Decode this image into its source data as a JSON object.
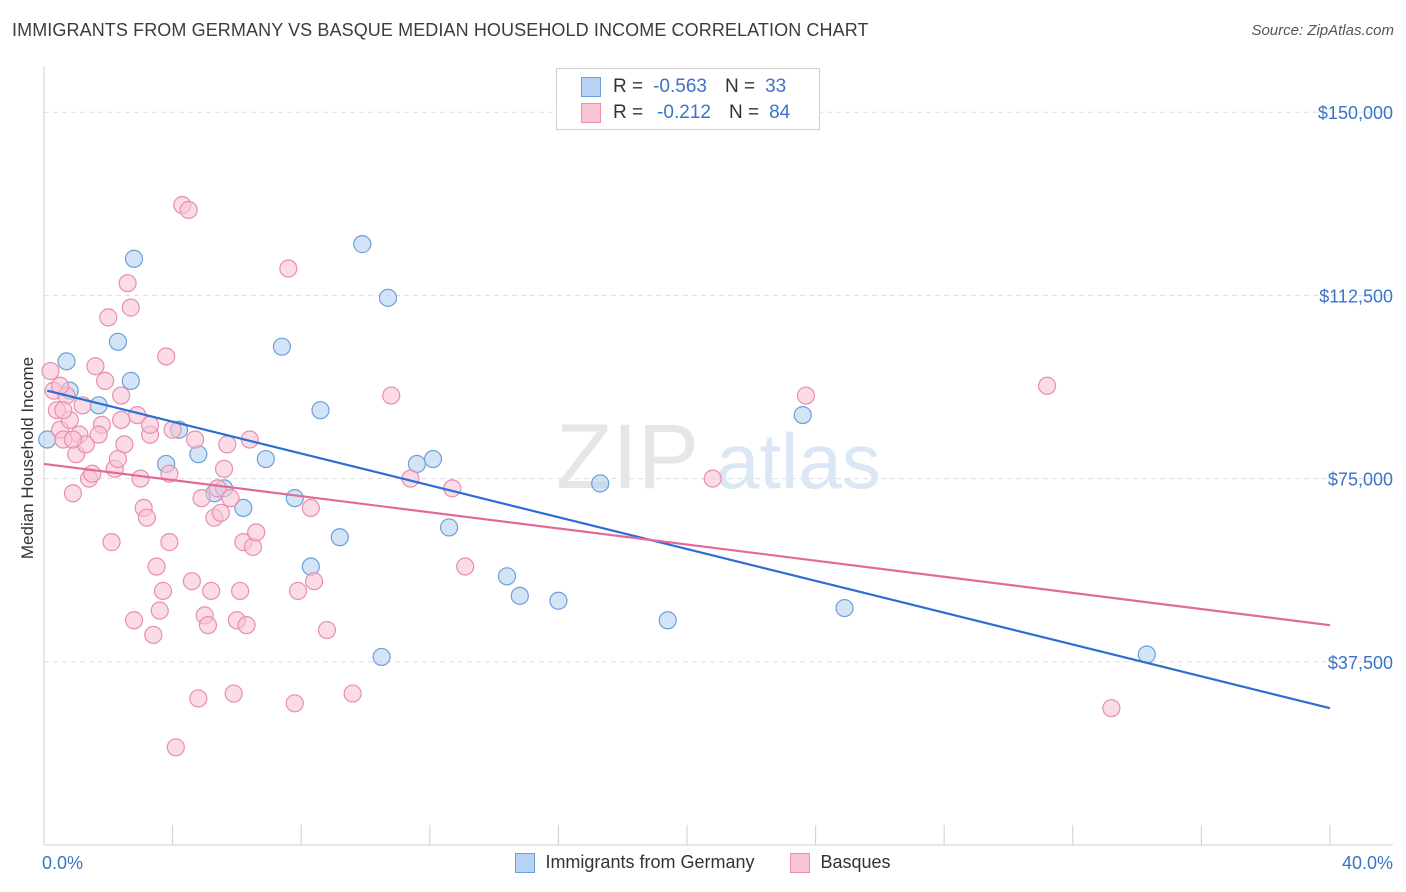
{
  "title": "IMMIGRANTS FROM GERMANY VS BASQUE MEDIAN HOUSEHOLD INCOME CORRELATION CHART",
  "source": "Source: ZipAtlas.com",
  "watermark": {
    "zip": "ZIP",
    "atlas": "atlas"
  },
  "legend": {
    "rows": [
      {
        "r_label": "R =",
        "r_value": "-0.563",
        "n_label": "N =",
        "n_value": "33"
      },
      {
        "r_label": "R =",
        "r_value": "-0.212",
        "n_label": "N =",
        "n_value": "84"
      }
    ]
  },
  "colors": {
    "blue_fill": "#b7d2f2",
    "blue_stroke": "#6d9fd8",
    "blue_line": "#2b6fd1",
    "pink_fill": "#f8c3d4",
    "pink_stroke": "#e88fad",
    "pink_line": "#e36a98",
    "axis_text": "#3a74c9",
    "grid": "#dddddd"
  },
  "chart_data": {
    "type": "scatter",
    "title": "IMMIGRANTS FROM GERMANY VS BASQUE MEDIAN HOUSEHOLD INCOME CORRELATION CHART",
    "xlabel": "",
    "ylabel": "Median Household Income",
    "xlim": [
      0,
      40
    ],
    "ylim": [
      0,
      157000
    ],
    "x_tick_labels": [
      "0.0%",
      "40.0%"
    ],
    "y_ticks": [
      37500,
      75000,
      112500,
      150000
    ],
    "y_tick_labels": [
      "$37,500",
      "$75,000",
      "$112,500",
      "$150,000"
    ],
    "legend_position": "bottom",
    "series": [
      {
        "name": "Immigrants from Germany",
        "color": "#6d9fd8",
        "points": [
          [
            0.1,
            83000
          ],
          [
            0.7,
            99000
          ],
          [
            0.8,
            93000
          ],
          [
            1.7,
            90000
          ],
          [
            2.3,
            103000
          ],
          [
            2.8,
            120000
          ],
          [
            2.7,
            95000
          ],
          [
            3.8,
            78000
          ],
          [
            4.2,
            85000
          ],
          [
            4.8,
            80000
          ],
          [
            5.3,
            72000
          ],
          [
            5.6,
            73000
          ],
          [
            6.2,
            69000
          ],
          [
            6.9,
            79000
          ],
          [
            7.4,
            102000
          ],
          [
            7.8,
            71000
          ],
          [
            8.3,
            57000
          ],
          [
            8.6,
            89000
          ],
          [
            9.2,
            63000
          ],
          [
            9.9,
            123000
          ],
          [
            10.5,
            38500
          ],
          [
            10.7,
            112000
          ],
          [
            11.6,
            78000
          ],
          [
            12.1,
            79000
          ],
          [
            12.6,
            65000
          ],
          [
            14.4,
            55000
          ],
          [
            14.8,
            51000
          ],
          [
            16.0,
            50000
          ],
          [
            17.3,
            74000
          ],
          [
            19.4,
            46000
          ],
          [
            23.6,
            88000
          ],
          [
            24.9,
            48500
          ],
          [
            34.3,
            39000
          ]
        ],
        "trend": {
          "x": [
            0.1,
            40
          ],
          "y": [
            93000,
            28000
          ]
        }
      },
      {
        "name": "Basques",
        "color": "#e88fad",
        "points": [
          [
            0.2,
            97000
          ],
          [
            0.3,
            93000
          ],
          [
            0.4,
            89000
          ],
          [
            0.5,
            85000
          ],
          [
            0.6,
            83000
          ],
          [
            0.7,
            92000
          ],
          [
            0.8,
            87000
          ],
          [
            0.9,
            72000
          ],
          [
            1.0,
            80000
          ],
          [
            1.1,
            84000
          ],
          [
            1.3,
            82000
          ],
          [
            1.4,
            75000
          ],
          [
            1.5,
            76000
          ],
          [
            1.6,
            98000
          ],
          [
            1.8,
            86000
          ],
          [
            1.9,
            95000
          ],
          [
            2.0,
            108000
          ],
          [
            2.1,
            62000
          ],
          [
            2.2,
            77000
          ],
          [
            2.4,
            87000
          ],
          [
            2.5,
            82000
          ],
          [
            2.6,
            115000
          ],
          [
            2.7,
            110000
          ],
          [
            2.8,
            46000
          ],
          [
            2.9,
            88000
          ],
          [
            3.0,
            75000
          ],
          [
            3.1,
            69000
          ],
          [
            3.2,
            67000
          ],
          [
            3.3,
            84000
          ],
          [
            3.4,
            43000
          ],
          [
            3.5,
            57000
          ],
          [
            3.6,
            48000
          ],
          [
            3.7,
            52000
          ],
          [
            3.8,
            100000
          ],
          [
            3.9,
            76000
          ],
          [
            4.0,
            85000
          ],
          [
            4.1,
            20000
          ],
          [
            4.3,
            131000
          ],
          [
            4.5,
            130000
          ],
          [
            4.6,
            54000
          ],
          [
            4.7,
            83000
          ],
          [
            4.8,
            30000
          ],
          [
            4.9,
            71000
          ],
          [
            5.0,
            47000
          ],
          [
            5.1,
            45000
          ],
          [
            5.2,
            52000
          ],
          [
            5.3,
            67000
          ],
          [
            5.4,
            73000
          ],
          [
            5.5,
            68000
          ],
          [
            5.6,
            77000
          ],
          [
            5.7,
            82000
          ],
          [
            5.8,
            71000
          ],
          [
            5.9,
            31000
          ],
          [
            6.0,
            46000
          ],
          [
            6.1,
            52000
          ],
          [
            6.2,
            62000
          ],
          [
            6.3,
            45000
          ],
          [
            6.4,
            83000
          ],
          [
            6.5,
            61000
          ],
          [
            6.6,
            64000
          ],
          [
            7.6,
            118000
          ],
          [
            7.8,
            29000
          ],
          [
            7.9,
            52000
          ],
          [
            8.3,
            69000
          ],
          [
            8.4,
            54000
          ],
          [
            8.8,
            44000
          ],
          [
            9.6,
            31000
          ],
          [
            10.8,
            92000
          ],
          [
            11.4,
            75000
          ],
          [
            12.7,
            73000
          ],
          [
            13.1,
            57000
          ],
          [
            20.8,
            75000
          ],
          [
            23.7,
            92000
          ],
          [
            31.2,
            94000
          ],
          [
            33.2,
            28000
          ],
          [
            1.2,
            90000
          ],
          [
            2.3,
            79000
          ],
          [
            3.3,
            86000
          ],
          [
            0.5,
            94000
          ],
          [
            0.9,
            83000
          ],
          [
            1.7,
            84000
          ],
          [
            2.4,
            92000
          ],
          [
            3.9,
            62000
          ],
          [
            0.6,
            89000
          ]
        ],
        "trend": {
          "x": [
            0,
            40
          ],
          "y": [
            78000,
            45000
          ]
        }
      }
    ]
  }
}
